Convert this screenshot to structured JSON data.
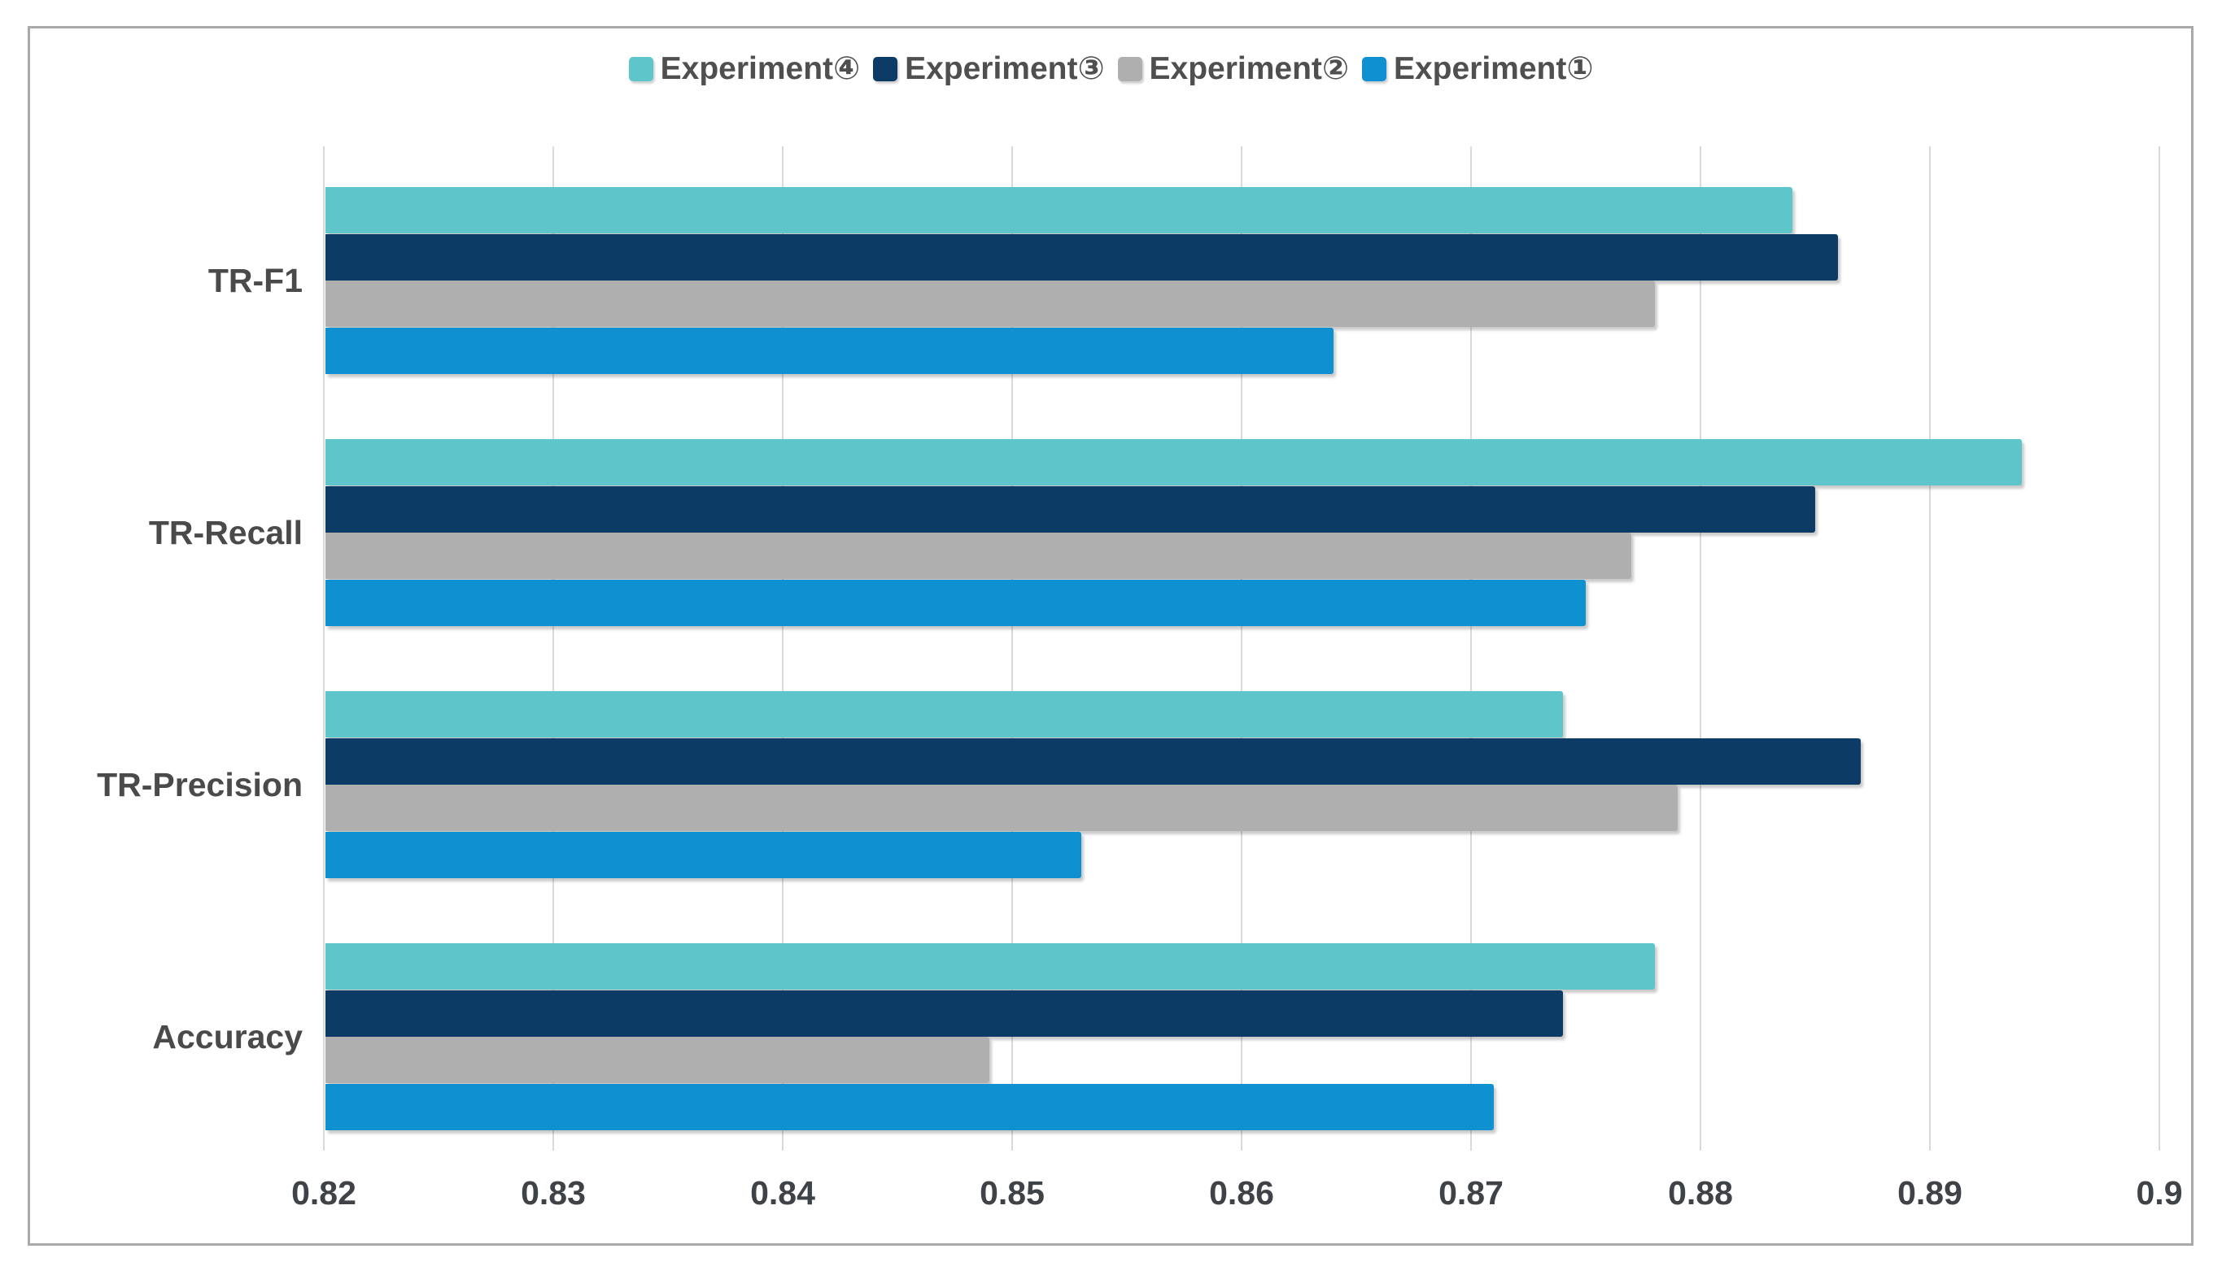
{
  "chart_data": {
    "type": "bar",
    "orientation": "horizontal",
    "title": "",
    "xlabel": "",
    "ylabel": "",
    "categories": [
      "TR-F1",
      "TR-Recall",
      "TR-Precision",
      "Accuracy"
    ],
    "series": [
      {
        "name": "Experiment④",
        "color": "#5ec5cb",
        "values": [
          0.884,
          0.894,
          0.874,
          0.878
        ]
      },
      {
        "name": "Experiment③",
        "color": "#0c3c66",
        "values": [
          0.886,
          0.885,
          0.887,
          0.874
        ]
      },
      {
        "name": "Experiment②",
        "color": "#afafaf",
        "values": [
          0.878,
          0.877,
          0.879,
          0.849
        ]
      },
      {
        "name": "Experiment①",
        "color": "#0f90d1",
        "values": [
          0.864,
          0.875,
          0.853,
          0.871
        ]
      }
    ],
    "xlim": [
      0.82,
      0.9
    ],
    "xticks": [
      0.82,
      0.83,
      0.84,
      0.85,
      0.86,
      0.87,
      0.88,
      0.89,
      0.9
    ],
    "xtick_labels": [
      "0.82",
      "0.83",
      "0.84",
      "0.85",
      "0.86",
      "0.87",
      "0.88",
      "0.89",
      "0.9"
    ],
    "grid": "vertical-only",
    "legend_position": "top-center",
    "bar_order_note": "within each category, bars top to bottom: Experiment④, Experiment③, Experiment②, Experiment①"
  },
  "colors": {
    "background": "#ffffff",
    "frame_border": "#a9a9a9",
    "gridline": "#d9d9d9",
    "category_label_text": "#4a4a4a",
    "tick_label_text": "#3f4347",
    "legend_text": "#4f4f4f"
  }
}
